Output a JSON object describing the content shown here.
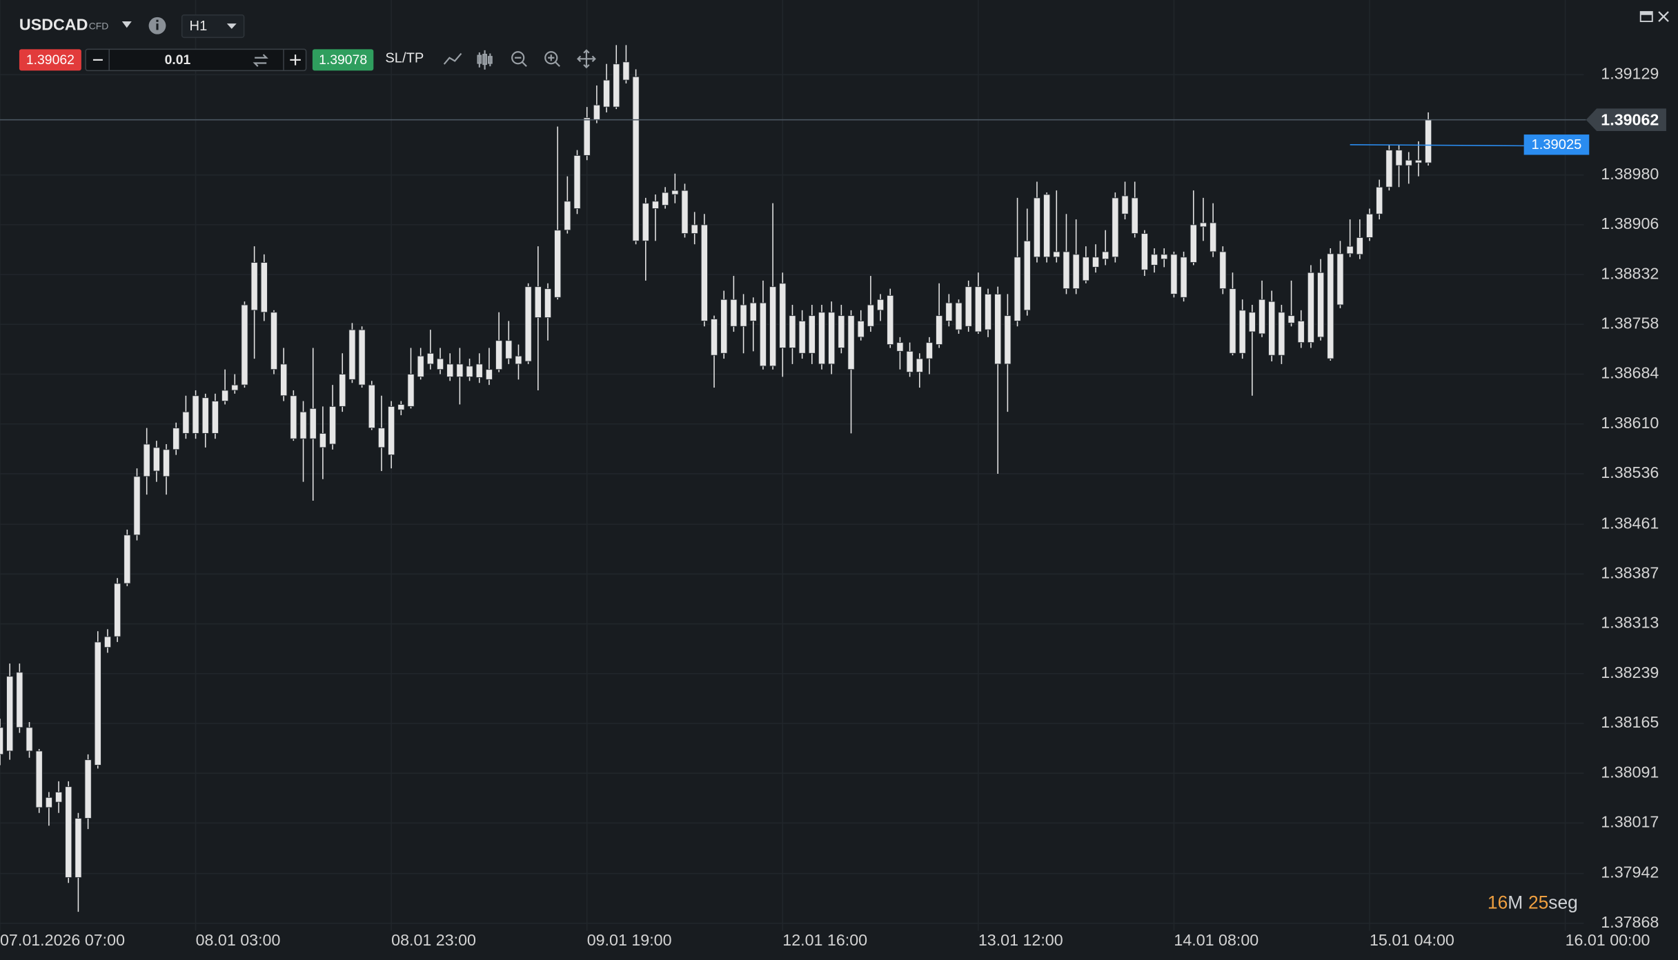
{
  "toolbar": {
    "symbol": "USDCAD",
    "symbol_type": "CFD",
    "timeframe": "H1",
    "sell_price": "1.39062",
    "volume": "0.01",
    "buy_price": "1.39078",
    "sl_tp": "SL/TP"
  },
  "countdown": {
    "minutes": "16",
    "minutes_unit": "M",
    "seconds": "25",
    "seconds_unit": "seg"
  },
  "chart_data": {
    "type": "candlestick",
    "up_color": "#e6e6e6",
    "down_color": "#e6e6e6",
    "grid": true,
    "current_price": 1.39062,
    "order_price": 1.39025,
    "ylim": [
      1.37857,
      1.3924
    ],
    "yticks": [
      1.39129,
      {
        "value": 1.3898,
        "label": "1.38980"
      },
      1.38906,
      1.38832,
      1.38758,
      1.38684,
      {
        "value": 1.3861,
        "label": "1.38610"
      },
      1.38536,
      1.38461,
      1.38387,
      1.38313,
      1.38239,
      1.38165,
      1.38091,
      1.38017,
      1.37942,
      1.37868
    ],
    "xlim": [
      0,
      161.9
    ],
    "xticks": [
      {
        "value": 0,
        "label": "07.01.2026 07:00"
      },
      {
        "value": 20,
        "label": "08.01 03:00"
      },
      {
        "value": 40,
        "label": "08.01 23:00"
      },
      {
        "value": 60,
        "label": "09.01 19:00"
      },
      {
        "value": 80,
        "label": "12.01 16:00"
      },
      {
        "value": 100,
        "label": "13.01 12:00"
      },
      {
        "value": 120,
        "label": "14.01 08:00"
      },
      {
        "value": 140,
        "label": "15.01 04:00"
      },
      {
        "value": 160,
        "label": "16.01 00:00"
      }
    ],
    "open": [
      1.38119,
      1.38124,
      1.38241,
      1.38159,
      1.38124,
      1.38055,
      1.38048,
      1.38071,
      1.37936,
      1.38024,
      1.38103,
      1.38278,
      1.38294,
      1.38373,
      1.38445,
      1.38532,
      1.3854,
      1.38572,
      1.38572,
      1.38596,
      1.38596,
      1.38649,
      1.38596,
      1.38644,
      1.3866,
      1.38668,
      1.38779,
      1.3885,
      1.38776,
      1.38699,
      1.38652,
      1.38588,
      1.38588,
      1.38596,
      1.3858,
      1.38636,
      1.38676,
      1.3875,
      1.38668,
      1.38604,
      1.38564,
      1.38631,
      1.38636,
      1.3868,
      1.38699,
      1.38707,
      1.38699,
      1.3868,
      1.3868,
      1.38679,
      1.38676,
      1.38691,
      1.38734,
      1.38699,
      1.38703,
      1.38814,
      1.38768,
      1.38798,
      1.38898,
      1.3893,
      1.39009,
      1.39062,
      1.39081,
      1.39081,
      1.39121,
      1.39126,
      1.38882,
      1.3893,
      1.38935,
      1.38951,
      1.38957,
      1.38906,
      1.38906,
      1.38766,
      1.38715,
      1.38795,
      1.38755,
      1.3879,
      1.3879,
      1.38696,
      1.38819,
      1.38723,
      1.38715,
      1.38771,
      1.38699,
      1.38776,
      1.38771,
      1.38771,
      1.38739,
      1.38755,
      1.38779,
      1.38801,
      1.38731,
      1.38718,
      1.38707,
      1.38707,
      1.38728,
      1.38763,
      1.3879,
      1.38755,
      1.38814,
      1.3875,
      1.38803,
      1.38699,
      1.38763,
      1.38779,
      1.38858,
      1.38951,
      1.38858,
      1.38811,
      1.38862,
      1.38823,
      1.38843,
      1.38855,
      1.38858,
      1.38949,
      1.38946,
      1.38893,
      1.38846,
      1.38855,
      1.38862,
      1.38798,
      1.3885,
      1.38909,
      1.38909,
      1.38866,
      1.38811,
      1.38715,
      1.38776,
      1.38744,
      1.38792,
      1.38712,
      1.38771,
      1.38731,
      1.38731,
      1.38835,
      1.38707,
      1.38787,
      1.38863,
      1.38887,
      1.38887,
      1.38922,
      1.38962,
      1.39017,
      1.38994,
      1.39002,
      1.38998
    ],
    "high": [
      1.38172,
      1.38254,
      1.38254,
      1.38167,
      1.38127,
      1.38063,
      1.38079,
      1.38079,
      1.38032,
      1.38119,
      1.38302,
      1.38305,
      1.38381,
      1.38453,
      1.38544,
      1.38604,
      1.38585,
      1.3858,
      1.38612,
      1.38652,
      1.3866,
      1.38655,
      1.38655,
      1.38691,
      1.38684,
      1.38792,
      1.38874,
      1.38862,
      1.38779,
      1.38723,
      1.3866,
      1.38644,
      1.38723,
      1.38636,
      1.38668,
      1.38715,
      1.3876,
      1.38755,
      1.38674,
      1.38652,
      1.38644,
      1.38644,
      1.38723,
      1.38723,
      1.3875,
      1.38723,
      1.38715,
      1.38723,
      1.38707,
      1.38715,
      1.38723,
      1.38776,
      1.38763,
      1.38728,
      1.38819,
      1.38874,
      1.38819,
      1.39052,
      1.38978,
      1.39017,
      1.39081,
      1.39113,
      1.39145,
      1.39173,
      1.39173,
      1.39137,
      1.38946,
      1.38951,
      1.38962,
      1.38982,
      1.38967,
      1.38925,
      1.38922,
      1.38771,
      1.38808,
      1.3883,
      1.38803,
      1.38798,
      1.38823,
      1.38938,
      1.38835,
      1.38787,
      1.38779,
      1.38787,
      1.38787,
      1.38792,
      1.38787,
      1.38779,
      1.38779,
      1.3883,
      1.38803,
      1.38811,
      1.38739,
      1.38731,
      1.38715,
      1.38739,
      1.38819,
      1.38803,
      1.38795,
      1.38823,
      1.38835,
      1.38811,
      1.38814,
      1.38803,
      1.38946,
      1.3893,
      1.3897,
      1.38954,
      1.38957,
      1.38922,
      1.38914,
      1.38874,
      1.38877,
      1.38898,
      1.38954,
      1.3897,
      1.3897,
      1.38898,
      1.38871,
      1.38871,
      1.38866,
      1.38866,
      1.38957,
      1.38946,
      1.38938,
      1.38874,
      1.38835,
      1.38795,
      1.38787,
      1.38823,
      1.38808,
      1.38787,
      1.38823,
      1.38779,
      1.38846,
      1.38855,
      1.38871,
      1.38882,
      1.38914,
      1.38914,
      1.3893,
      1.38973,
      1.39025,
      1.39025,
      1.39014,
      1.3903,
      1.39073
    ],
    "low": [
      1.38103,
      1.38111,
      1.38151,
      1.38114,
      1.38032,
      1.38013,
      1.38032,
      1.37928,
      1.37885,
      1.38008,
      1.38098,
      1.3827,
      1.38286,
      1.38369,
      1.38437,
      1.38505,
      1.38524,
      1.38505,
      1.38564,
      1.38588,
      1.38588,
      1.38575,
      1.38588,
      1.38639,
      1.38655,
      1.38664,
      1.38707,
      1.38763,
      1.38684,
      1.38644,
      1.38585,
      1.38524,
      1.38496,
      1.38528,
      1.38572,
      1.38628,
      1.38671,
      1.38664,
      1.38601,
      1.3854,
      1.38544,
      1.38623,
      1.38633,
      1.38676,
      1.38691,
      1.38684,
      1.38674,
      1.38639,
      1.38674,
      1.38671,
      1.38668,
      1.38687,
      1.38699,
      1.38676,
      1.38699,
      1.3866,
      1.38734,
      1.38795,
      1.38893,
      1.38922,
      1.39002,
      1.39057,
      1.39073,
      1.39078,
      1.39116,
      1.38877,
      1.38823,
      1.38882,
      1.3893,
      1.38938,
      1.38887,
      1.38877,
      1.38755,
      1.38664,
      1.38707,
      1.38747,
      1.38715,
      1.38718,
      1.38691,
      1.38691,
      1.3868,
      1.38699,
      1.38707,
      1.38699,
      1.38691,
      1.38684,
      1.38715,
      1.38596,
      1.38734,
      1.38747,
      1.38763,
      1.38723,
      1.38691,
      1.3868,
      1.38664,
      1.38684,
      1.38723,
      1.38755,
      1.38744,
      1.38747,
      1.38744,
      1.38739,
      1.38536,
      1.38628,
      1.38755,
      1.38771,
      1.3885,
      1.3885,
      1.3885,
      1.38803,
      1.38803,
      1.38819,
      1.38835,
      1.38846,
      1.3885,
      1.38914,
      1.38887,
      1.3883,
      1.38835,
      1.38843,
      1.38798,
      1.38792,
      1.38846,
      1.38882,
      1.38858,
      1.38803,
      1.38712,
      1.38707,
      1.38652,
      1.38739,
      1.38703,
      1.38699,
      1.38755,
      1.38723,
      1.38723,
      1.38734,
      1.38704,
      1.38782,
      1.38858,
      1.38855,
      1.38882,
      1.38914,
      1.38957,
      1.38962,
      1.38967,
      1.38978,
      1.38994
    ],
    "close": [
      1.38159,
      1.38235,
      1.38159,
      1.38124,
      1.3804,
      1.3804,
      1.38063,
      1.37936,
      1.38024,
      1.38111,
      1.38286,
      1.38294,
      1.38373,
      1.38445,
      1.38532,
      1.3858,
      1.38575,
      1.38532,
      1.38604,
      1.38628,
      1.38652,
      1.38596,
      1.38644,
      1.3866,
      1.38668,
      1.38787,
      1.3885,
      1.38776,
      1.38691,
      1.38652,
      1.38588,
      1.38628,
      1.38633,
      1.38575,
      1.38636,
      1.38684,
      1.3875,
      1.38668,
      1.38604,
      1.38575,
      1.38636,
      1.38639,
      1.38684,
      1.38711,
      1.38715,
      1.38691,
      1.3868,
      1.38699,
      1.38696,
      1.38699,
      1.38691,
      1.38734,
      1.38707,
      1.38711,
      1.38814,
      1.38768,
      1.38811,
      1.38898,
      1.38941,
      1.39009,
      1.39065,
      1.39084,
      1.39121,
      1.39145,
      1.39148,
      1.38882,
      1.38938,
      1.38941,
      1.38954,
      1.38957,
      1.38893,
      1.38893,
      1.38763,
      1.38712,
      1.38795,
      1.38755,
      1.38787,
      1.38763,
      1.38696,
      1.38814,
      1.38723,
      1.38771,
      1.38763,
      1.38715,
      1.38776,
      1.38699,
      1.38723,
      1.38691,
      1.38763,
      1.38787,
      1.38795,
      1.38728,
      1.38718,
      1.38687,
      1.38687,
      1.38731,
      1.38771,
      1.3879,
      1.3875,
      1.38814,
      1.38747,
      1.38803,
      1.38699,
      1.38771,
      1.38858,
      1.38882,
      1.38946,
      1.38858,
      1.38866,
      1.38866,
      1.38811,
      1.38858,
      1.38858,
      1.38866,
      1.38946,
      1.38922,
      1.38893,
      1.38839,
      1.38862,
      1.38862,
      1.38803,
      1.38858,
      1.38906,
      1.38903,
      1.38866,
      1.38811,
      1.38715,
      1.38779,
      1.38747,
      1.38795,
      1.38712,
      1.38776,
      1.3876,
      1.38763,
      1.38835,
      1.38739,
      1.38863,
      1.38863,
      1.38874,
      1.38862,
      1.38922,
      1.38962,
      1.39017,
      1.38994,
      1.39002,
      1.38998,
      1.39062
    ]
  }
}
